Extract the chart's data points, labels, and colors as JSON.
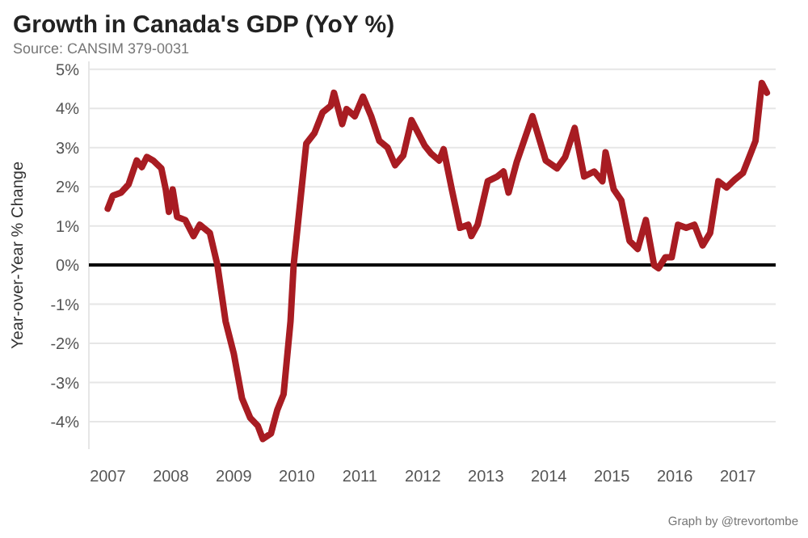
{
  "chart_data": {
    "type": "line",
    "title": "Growth in Canada's GDP (YoY %)",
    "subtitle": "Source: CANSIM 379-0031",
    "ylabel": "Year-over-Year % Change",
    "annotations": [
      "Graph by @trevortombe"
    ],
    "x": [
      2007.0,
      2007.08,
      2007.21,
      2007.33,
      2007.46,
      2007.54,
      2007.62,
      2007.72,
      2007.85,
      2007.92,
      2007.97,
      2008.03,
      2008.1,
      2008.23,
      2008.36,
      2008.46,
      2008.62,
      2008.74,
      2008.87,
      2009.0,
      2009.13,
      2009.26,
      2009.38,
      2009.46,
      2009.59,
      2009.69,
      2009.79,
      2009.9,
      2009.95,
      2010.15,
      2010.28,
      2010.41,
      2010.54,
      2010.59,
      2010.72,
      2010.79,
      2010.92,
      2011.05,
      2011.18,
      2011.31,
      2011.44,
      2011.56,
      2011.69,
      2011.82,
      2011.95,
      2012.03,
      2012.13,
      2012.26,
      2012.33,
      2012.46,
      2012.59,
      2012.72,
      2012.77,
      2012.87,
      2013.03,
      2013.18,
      2013.28,
      2013.36,
      2013.49,
      2013.74,
      2013.95,
      2014.13,
      2014.26,
      2014.41,
      2014.56,
      2014.72,
      2014.85,
      2014.9,
      2015.03,
      2015.15,
      2015.28,
      2015.41,
      2015.54,
      2015.67,
      2015.74,
      2015.85,
      2015.95,
      2016.05,
      2016.18,
      2016.31,
      2016.44,
      2016.56,
      2016.69,
      2016.82,
      2016.95,
      2017.08,
      2017.21,
      2017.28,
      2017.38,
      2017.46
    ],
    "series": [
      {
        "color": "#a81c22",
        "values": [
          1.44,
          1.77,
          1.85,
          2.06,
          2.67,
          2.5,
          2.76,
          2.67,
          2.47,
          1.93,
          1.36,
          1.93,
          1.23,
          1.15,
          0.74,
          1.03,
          0.82,
          0,
          -1.44,
          -2.26,
          -3.4,
          -3.9,
          -4.1,
          -4.44,
          -4.3,
          -3.7,
          -3.3,
          -1.44,
          0,
          3.1,
          3.37,
          3.9,
          4.07,
          4.4,
          3.6,
          3.98,
          3.8,
          4.3,
          3.8,
          3.17,
          3.0,
          2.55,
          2.8,
          3.7,
          3.3,
          3.05,
          2.85,
          2.67,
          2.96,
          1.93,
          0.95,
          1.03,
          0.74,
          1.03,
          2.14,
          2.26,
          2.39,
          1.85,
          2.63,
          3.8,
          2.67,
          2.47,
          2.76,
          3.5,
          2.26,
          2.39,
          2.14,
          2.88,
          1.93,
          1.65,
          0.62,
          0.41,
          1.15,
          0,
          -0.08,
          0.2,
          0.2,
          1.03,
          0.95,
          1.03,
          0.5,
          0.82,
          2.14,
          1.98,
          2.18,
          2.35,
          2.88,
          3.17,
          4.65,
          4.4
        ]
      }
    ],
    "xlim": [
      2006.7,
      2017.6
    ],
    "xticks": [
      2007,
      2008,
      2009,
      2010,
      2011,
      2012,
      2013,
      2014,
      2015,
      2016,
      2017
    ],
    "ylim": [
      -4.7,
      5.2
    ],
    "yticks": [
      {
        "value": -4,
        "label": "-4%"
      },
      {
        "value": -3,
        "label": "-3%"
      },
      {
        "value": -2,
        "label": "-2%"
      },
      {
        "value": -1,
        "label": "-1%"
      },
      {
        "value": 0,
        "label": "0%"
      },
      {
        "value": 1,
        "label": "1%"
      },
      {
        "value": 2,
        "label": "2%"
      },
      {
        "value": 3,
        "label": "3%"
      },
      {
        "value": 4,
        "label": "4%"
      },
      {
        "value": 5,
        "label": "5%"
      }
    ],
    "ref_lines": [
      {
        "axis": "y",
        "value": 0,
        "color": "#000000"
      }
    ],
    "grid": "y",
    "marker": "none",
    "line_style": "solid"
  }
}
